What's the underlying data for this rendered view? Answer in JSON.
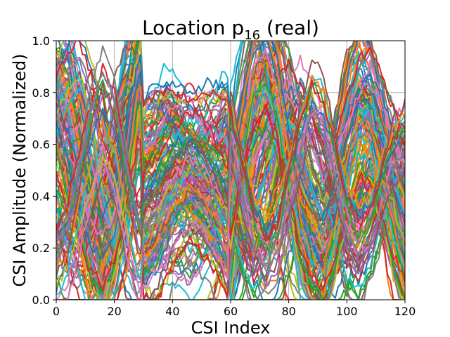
{
  "chart_data": {
    "type": "line",
    "title": "Location p",
    "title_subscript": "16",
    "title_suffix": " (real)",
    "xlabel": "CSI Index",
    "ylabel": "CSI Amplitude (Normalized)",
    "xlim": [
      0,
      120
    ],
    "ylim": [
      0.0,
      1.0
    ],
    "xticks": [
      0,
      20,
      40,
      60,
      80,
      100,
      120
    ],
    "yticks": [
      0.0,
      0.2,
      0.4,
      0.6,
      0.8,
      1.0
    ],
    "xtick_labels": [
      "0",
      "20",
      "40",
      "60",
      "80",
      "100",
      "120"
    ],
    "ytick_labels": [
      "0.0",
      "0.2",
      "0.4",
      "0.6",
      "0.8",
      "1.0"
    ],
    "grid": true,
    "legend": "none",
    "segment_breaks": [
      30,
      60
    ],
    "x": [
      0,
      4,
      8,
      12,
      16,
      20,
      24,
      28,
      29,
      30,
      34,
      38,
      42,
      46,
      50,
      54,
      58,
      59,
      60,
      64,
      68,
      72,
      76,
      80,
      84,
      88,
      92,
      96,
      100,
      104,
      108,
      112,
      116,
      120
    ],
    "series": [
      {
        "values": [
          0.95,
          0.9,
          0.7,
          0.35,
          0.15,
          0.45,
          0.85,
          0.98,
          0.95,
          0.5,
          0.58,
          0.62,
          0.55,
          0.48,
          0.52,
          0.6,
          0.65,
          0.62,
          0.25,
          0.6,
          0.88,
          0.98,
          0.8,
          0.45,
          0.2,
          0.12,
          0.25,
          0.55,
          0.78,
          0.82,
          0.7,
          0.5,
          0.3,
          0.18
        ]
      },
      {
        "values": [
          0.9,
          0.95,
          0.8,
          0.45,
          0.2,
          0.3,
          0.65,
          0.95,
          0.92,
          0.45,
          0.55,
          0.66,
          0.6,
          0.5,
          0.45,
          0.55,
          0.62,
          0.6,
          0.3,
          0.55,
          0.8,
          0.95,
          0.92,
          0.6,
          0.3,
          0.15,
          0.2,
          0.45,
          0.7,
          0.85,
          0.8,
          0.55,
          0.35,
          0.2
        ]
      },
      {
        "values": [
          0.85,
          0.75,
          0.5,
          0.25,
          0.1,
          0.35,
          0.75,
          0.99,
          0.98,
          0.4,
          0.5,
          0.55,
          0.58,
          0.55,
          0.5,
          0.48,
          0.55,
          0.58,
          0.2,
          0.45,
          0.75,
          0.9,
          0.98,
          0.75,
          0.4,
          0.2,
          0.15,
          0.35,
          0.6,
          0.8,
          0.85,
          0.65,
          0.4,
          0.22
        ]
      },
      {
        "values": [
          0.2,
          0.35,
          0.55,
          0.7,
          0.6,
          0.4,
          0.2,
          0.1,
          0.12,
          0.15,
          0.25,
          0.35,
          0.4,
          0.42,
          0.35,
          0.28,
          0.2,
          0.18,
          0.05,
          0.2,
          0.35,
          0.5,
          0.6,
          0.55,
          0.4,
          0.3,
          0.25,
          0.2,
          0.25,
          0.35,
          0.45,
          0.5,
          0.45,
          0.4
        ]
      },
      {
        "values": [
          0.75,
          0.6,
          0.4,
          0.2,
          0.08,
          0.2,
          0.55,
          0.9,
          0.92,
          0.2,
          0.15,
          0.1,
          0.08,
          0.05,
          0.1,
          0.2,
          0.35,
          0.4,
          0.55,
          0.8,
          0.95,
          0.75,
          0.45,
          0.2,
          0.08,
          0.05,
          0.12,
          0.35,
          0.6,
          0.7,
          0.65,
          0.45,
          0.25,
          0.1
        ]
      },
      {
        "values": [
          0.6,
          0.45,
          0.3,
          0.18,
          0.25,
          0.45,
          0.7,
          0.85,
          0.88,
          0.65,
          0.68,
          0.7,
          0.66,
          0.62,
          0.58,
          0.55,
          0.6,
          0.62,
          0.1,
          0.3,
          0.55,
          0.75,
          0.85,
          0.8,
          0.6,
          0.4,
          0.25,
          0.2,
          0.3,
          0.5,
          0.65,
          0.7,
          0.6,
          0.45
        ]
      },
      {
        "values": [
          0.4,
          0.55,
          0.65,
          0.5,
          0.3,
          0.2,
          0.35,
          0.6,
          0.62,
          0.3,
          0.35,
          0.45,
          0.55,
          0.6,
          0.55,
          0.45,
          0.35,
          0.33,
          0.6,
          0.4,
          0.25,
          0.15,
          0.2,
          0.35,
          0.55,
          0.65,
          0.6,
          0.45,
          0.3,
          0.25,
          0.35,
          0.5,
          0.6,
          0.55
        ]
      },
      {
        "values": [
          0.98,
          0.85,
          0.6,
          0.3,
          0.12,
          0.25,
          0.6,
          0.95,
          0.97,
          0.6,
          0.62,
          0.58,
          0.5,
          0.4,
          0.35,
          0.42,
          0.55,
          0.58,
          0.15,
          0.55,
          0.9,
          0.99,
          0.85,
          0.55,
          0.25,
          0.1,
          0.15,
          0.4,
          0.7,
          0.9,
          0.85,
          0.6,
          0.35,
          0.15
        ]
      },
      {
        "values": [
          0.3,
          0.2,
          0.15,
          0.25,
          0.45,
          0.65,
          0.8,
          0.75,
          0.72,
          0.05,
          0.1,
          0.2,
          0.3,
          0.35,
          0.3,
          0.25,
          0.15,
          0.12,
          0.4,
          0.25,
          0.15,
          0.25,
          0.45,
          0.65,
          0.75,
          0.7,
          0.55,
          0.35,
          0.2,
          0.15,
          0.25,
          0.4,
          0.55,
          0.6
        ]
      },
      {
        "values": [
          0.7,
          0.8,
          0.85,
          0.7,
          0.45,
          0.3,
          0.45,
          0.7,
          0.75,
          0.55,
          0.6,
          0.62,
          0.6,
          0.58,
          0.6,
          0.62,
          0.6,
          0.58,
          0.5,
          0.45,
          0.4,
          0.5,
          0.65,
          0.7,
          0.6,
          0.45,
          0.35,
          0.4,
          0.55,
          0.7,
          0.75,
          0.65,
          0.5,
          0.35
        ]
      },
      {
        "values": [
          0.55,
          0.4,
          0.25,
          0.1,
          0.05,
          0.15,
          0.4,
          0.7,
          0.72,
          0.35,
          0.4,
          0.48,
          0.52,
          0.5,
          0.45,
          0.4,
          0.38,
          0.36,
          0.35,
          0.65,
          0.85,
          0.92,
          0.78,
          0.5,
          0.28,
          0.15,
          0.1,
          0.25,
          0.45,
          0.6,
          0.58,
          0.42,
          0.25,
          0.12
        ]
      },
      {
        "values": [
          0.15,
          0.25,
          0.45,
          0.65,
          0.8,
          0.7,
          0.45,
          0.25,
          0.22,
          0.25,
          0.3,
          0.38,
          0.45,
          0.5,
          0.48,
          0.4,
          0.3,
          0.28,
          0.7,
          0.5,
          0.3,
          0.2,
          0.25,
          0.45,
          0.65,
          0.8,
          0.75,
          0.55,
          0.35,
          0.25,
          0.3,
          0.45,
          0.6,
          0.65
        ]
      }
    ]
  },
  "colors": {
    "palette": [
      "#1f77b4",
      "#ff7f0e",
      "#2ca02c",
      "#d62728",
      "#9467bd",
      "#8c564b",
      "#e377c2",
      "#7f7f7f",
      "#bcbd22",
      "#17becf"
    ],
    "grid": "#b0b0b0",
    "axes": "#000000"
  }
}
